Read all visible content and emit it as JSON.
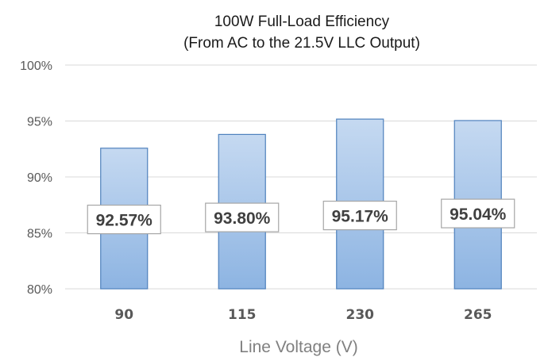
{
  "chart_data": {
    "type": "bar",
    "title": "100W Full-Load Efficiency",
    "subtitle": "(From AC to the 21.5V LLC Output)",
    "xlabel": "Line Voltage (V)",
    "ylabel": "",
    "categories": [
      "90",
      "115",
      "230",
      "265"
    ],
    "values": [
      92.57,
      93.8,
      95.17,
      95.04
    ],
    "data_labels": [
      "92.57%",
      "93.80%",
      "95.17%",
      "95.04%"
    ],
    "ylim": [
      80,
      100
    ],
    "yticks": [
      80,
      85,
      90,
      95,
      100
    ],
    "ytick_labels": [
      "80%",
      "85%",
      "90%",
      "95%",
      "100%"
    ],
    "grid": true,
    "legend": "none",
    "bar_gradient_top": "#c5d9f1",
    "bar_gradient_bottom": "#8db4e2",
    "bar_border": "#4f81bd"
  }
}
